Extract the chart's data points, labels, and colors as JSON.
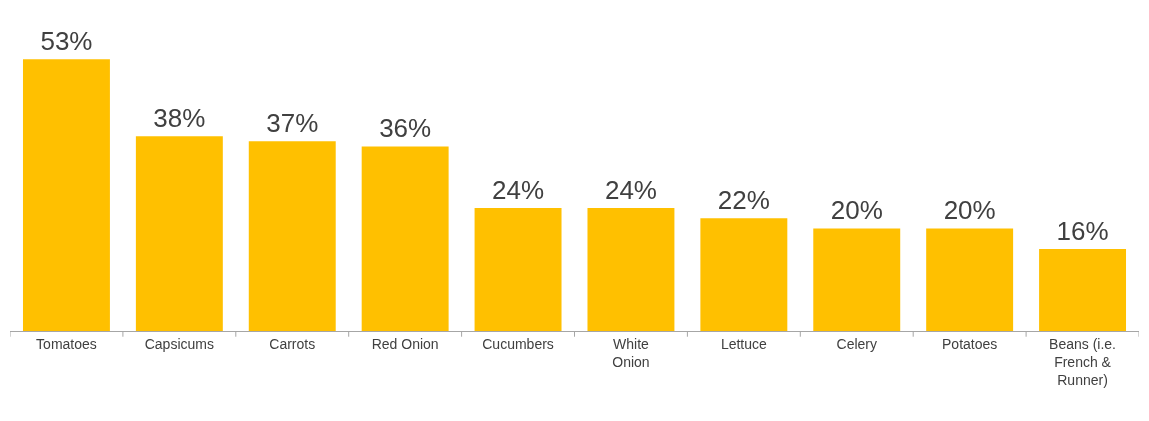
{
  "chart_data": {
    "type": "bar",
    "categories": [
      "Tomatoes",
      "Capsicums",
      "Carrots",
      "Red Onion",
      "Cucumbers",
      "White Onion",
      "Lettuce",
      "Celery",
      "Potatoes",
      "Beans (i.e. French & Runner)"
    ],
    "values": [
      53,
      38,
      37,
      36,
      24,
      24,
      22,
      20,
      20,
      16
    ],
    "value_labels": [
      "53%",
      "38%",
      "37%",
      "36%",
      "24%",
      "24%",
      "22%",
      "20%",
      "20%",
      "16%"
    ],
    "color": "#ffc000",
    "grid": false,
    "legend": false
  }
}
